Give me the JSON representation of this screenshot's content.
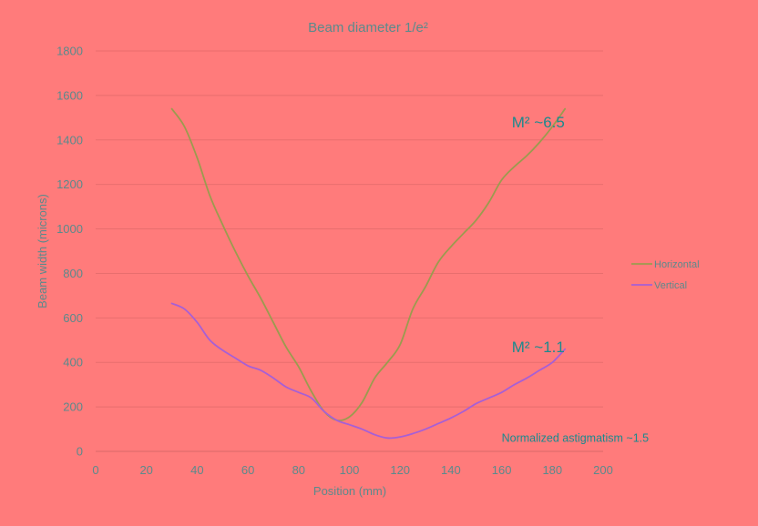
{
  "chart_data": {
    "type": "line",
    "title": "Beam diameter 1/e²",
    "xlabel": "Position (mm)",
    "ylabel": "Beam width (microns)",
    "xlim": [
      0,
      200
    ],
    "ylim": [
      0,
      1800
    ],
    "x_ticks": [
      "0",
      "20",
      "40",
      "60",
      "80",
      "100",
      "120",
      "140",
      "160",
      "180",
      "200"
    ],
    "y_ticks": [
      "0",
      "200",
      "400",
      "600",
      "800",
      "1000",
      "1200",
      "1400",
      "1600",
      "1800"
    ],
    "grid": true,
    "legend_position": "right",
    "series": [
      {
        "name": "Horizontal",
        "color": "#9b9b4e",
        "x": [
          30,
          35,
          40,
          45,
          50,
          55,
          60,
          65,
          70,
          75,
          80,
          85,
          90,
          95,
          100,
          105,
          110,
          115,
          120,
          125,
          130,
          135,
          140,
          145,
          150,
          155,
          160,
          165,
          170,
          175,
          180,
          185
        ],
        "y": [
          1540,
          1460,
          1320,
          1150,
          1020,
          900,
          790,
          690,
          580,
          470,
          380,
          270,
          180,
          140,
          155,
          220,
          330,
          400,
          480,
          640,
          740,
          850,
          920,
          980,
          1040,
          1120,
          1220,
          1280,
          1330,
          1390,
          1460,
          1540
        ]
      },
      {
        "name": "Vertical",
        "color": "#a65fd6",
        "x": [
          30,
          35,
          40,
          45,
          50,
          55,
          60,
          65,
          70,
          75,
          80,
          85,
          90,
          95,
          100,
          105,
          110,
          115,
          120,
          125,
          130,
          135,
          140,
          145,
          150,
          155,
          160,
          165,
          170,
          175,
          180,
          185
        ],
        "y": [
          665,
          640,
          580,
          500,
          455,
          420,
          385,
          365,
          330,
          290,
          265,
          240,
          180,
          140,
          120,
          100,
          75,
          60,
          65,
          80,
          100,
          125,
          150,
          180,
          215,
          240,
          265,
          300,
          330,
          365,
          400,
          460
        ]
      }
    ],
    "annotations": [
      {
        "id": "m2-horizontal",
        "text": "M² ~6.5",
        "x": 164,
        "y": 1480
      },
      {
        "id": "m2-vertical",
        "text": "M² ~1.1",
        "x": 164,
        "y": 470
      },
      {
        "id": "astigmatism",
        "text": "Normalized astigmatism ~1.5",
        "x": 160,
        "y": 60
      }
    ]
  }
}
